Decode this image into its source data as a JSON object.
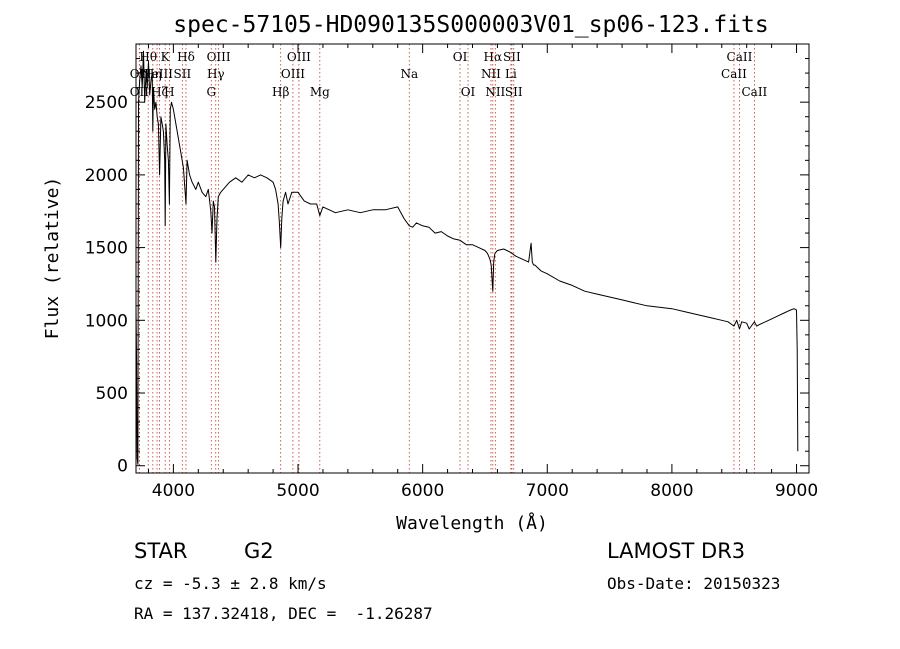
{
  "chart_data": {
    "type": "line",
    "title": "spec-57105-HD090135S000003V01_sp06-123.fits",
    "xlabel": "Wavelength (Å)",
    "ylabel": "Flux (relative)",
    "xlim": [
      3700,
      9100
    ],
    "ylim": [
      -50,
      2900
    ],
    "xticks": [
      4000,
      5000,
      6000,
      7000,
      8000,
      9000
    ],
    "yticks": [
      0,
      500,
      1000,
      1500,
      2000,
      2500
    ],
    "series": [
      {
        "name": "spectrum",
        "x": [
          3700,
          3705,
          3710,
          3715,
          3720,
          3730,
          3740,
          3750,
          3760,
          3770,
          3780,
          3790,
          3800,
          3810,
          3820,
          3830,
          3835,
          3840,
          3850,
          3860,
          3870,
          3880,
          3889,
          3900,
          3910,
          3920,
          3930,
          3934,
          3940,
          3950,
          3960,
          3968,
          3975,
          3985,
          4000,
          4020,
          4040,
          4060,
          4080,
          4101,
          4110,
          4130,
          4150,
          4180,
          4200,
          4230,
          4260,
          4280,
          4300,
          4310,
          4320,
          4330,
          4340,
          4350,
          4360,
          4380,
          4400,
          4450,
          4500,
          4550,
          4600,
          4650,
          4700,
          4750,
          4800,
          4820,
          4840,
          4850,
          4861,
          4870,
          4880,
          4900,
          4920,
          4950,
          5000,
          5050,
          5100,
          5150,
          5175,
          5200,
          5250,
          5300,
          5400,
          5500,
          5600,
          5700,
          5800,
          5850,
          5893,
          5920,
          5950,
          6000,
          6050,
          6100,
          6150,
          6200,
          6250,
          6300,
          6350,
          6400,
          6450,
          6500,
          6520,
          6540,
          6550,
          6563,
          6570,
          6580,
          6600,
          6650,
          6700,
          6750,
          6800,
          6850,
          6870,
          6880,
          6890,
          6900,
          6950,
          7000,
          7100,
          7200,
          7300,
          7400,
          7500,
          7600,
          7700,
          7800,
          7900,
          8000,
          8100,
          8200,
          8300,
          8400,
          8450,
          8498,
          8520,
          8542,
          8560,
          8600,
          8620,
          8662,
          8680,
          8700,
          8750,
          8800,
          8850,
          8900,
          8950,
          8980,
          9000,
          9005,
          9010
        ],
        "y": [
          1100,
          700,
          50,
          10,
          2500,
          2650,
          2750,
          2600,
          2850,
          2500,
          2700,
          2600,
          2780,
          2550,
          2650,
          2700,
          2300,
          2600,
          2450,
          2500,
          2400,
          2350,
          2000,
          2400,
          2350,
          2300,
          2100,
          1650,
          2350,
          2200,
          2100,
          1800,
          2450,
          2500,
          2450,
          2350,
          2250,
          2150,
          2050,
          1800,
          2100,
          2000,
          1950,
          1900,
          1950,
          1880,
          1850,
          1900,
          1750,
          1600,
          1820,
          1780,
          1400,
          1700,
          1850,
          1880,
          1900,
          1950,
          1980,
          1950,
          2000,
          1980,
          2000,
          1980,
          1950,
          1900,
          1800,
          1680,
          1500,
          1700,
          1820,
          1880,
          1800,
          1880,
          1880,
          1820,
          1800,
          1800,
          1720,
          1780,
          1760,
          1740,
          1760,
          1740,
          1760,
          1760,
          1780,
          1700,
          1650,
          1640,
          1670,
          1650,
          1640,
          1600,
          1610,
          1580,
          1560,
          1550,
          1520,
          1520,
          1500,
          1480,
          1460,
          1420,
          1380,
          1200,
          1400,
          1460,
          1480,
          1490,
          1470,
          1440,
          1420,
          1400,
          1530,
          1400,
          1380,
          1380,
          1340,
          1320,
          1270,
          1240,
          1200,
          1180,
          1160,
          1140,
          1120,
          1100,
          1090,
          1080,
          1060,
          1040,
          1020,
          1000,
          990,
          960,
          1000,
          940,
          990,
          980,
          940,
          990,
          960,
          970,
          990,
          1010,
          1030,
          1050,
          1070,
          1080,
          1070,
          800,
          100
        ]
      }
    ],
    "line_markers": [
      {
        "label": "Hθ",
        "wave": 3798,
        "row": 0
      },
      {
        "label": "OII",
        "wave": 3727,
        "row": 1
      },
      {
        "label": "Hη",
        "wave": 3835,
        "row": 1
      },
      {
        "label": "OII",
        "wave": 3727,
        "row": 2
      },
      {
        "label": "Hζ",
        "wave": 3889,
        "row": 2
      },
      {
        "label": "NeIII",
        "wave": 3869,
        "row": 1
      },
      {
        "label": "K",
        "wave": 3934,
        "row": 0
      },
      {
        "label": "SII",
        "wave": 4072,
        "row": 1
      },
      {
        "label": "H",
        "wave": 3968,
        "row": 2
      },
      {
        "label": "Hδ",
        "wave": 4101,
        "row": 0
      },
      {
        "label": "OIII",
        "wave": 4363,
        "row": 0
      },
      {
        "label": "Hγ",
        "wave": 4340,
        "row": 1
      },
      {
        "label": "G",
        "wave": 4304,
        "row": 2
      },
      {
        "label": "Hβ",
        "wave": 4861,
        "row": 2
      },
      {
        "label": "OIII",
        "wave": 5007,
        "row": 0
      },
      {
        "label": "OIII",
        "wave": 4959,
        "row": 1
      },
      {
        "label": "Mg",
        "wave": 5175,
        "row": 2
      },
      {
        "label": "Na",
        "wave": 5893,
        "row": 1
      },
      {
        "label": "OI",
        "wave": 6300,
        "row": 0
      },
      {
        "label": "OI",
        "wave": 6364,
        "row": 2
      },
      {
        "label": "Hα",
        "wave": 6563,
        "row": 0
      },
      {
        "label": "NII",
        "wave": 6548,
        "row": 1
      },
      {
        "label": "NII",
        "wave": 6583,
        "row": 2
      },
      {
        "label": "SII",
        "wave": 6716,
        "row": 0
      },
      {
        "label": "Li",
        "wave": 6708,
        "row": 1
      },
      {
        "label": "SII",
        "wave": 6731,
        "row": 2
      },
      {
        "label": "CaII",
        "wave": 8542,
        "row": 0
      },
      {
        "label": "CaII",
        "wave": 8498,
        "row": 1
      },
      {
        "label": "CaII",
        "wave": 8662,
        "row": 2
      }
    ]
  },
  "info": {
    "object_class": "STAR",
    "subclass": "G2",
    "survey": "LAMOST DR3",
    "cz": "cz = -5.3 ± 2.8 km/s",
    "obs_date": "Obs-Date: 20150323",
    "coords": "RA = 137.32418, DEC =  -1.26287"
  }
}
